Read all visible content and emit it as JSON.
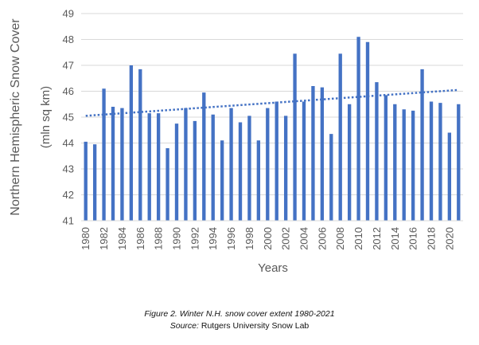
{
  "chart_data": {
    "type": "bar",
    "title": "",
    "xlabel": "Years",
    "ylabel": "Northern Hemispheric Snow Cover",
    "ylabel_units": "(mln sq km)",
    "ylim": [
      41,
      49
    ],
    "yticks": [
      "41",
      "42",
      "43",
      "44",
      "45",
      "46",
      "47",
      "48",
      "49"
    ],
    "grid": true,
    "legend": "none",
    "x_tick_labels": [
      "1980",
      "1982",
      "1984",
      "1986",
      "1988",
      "1990",
      "1992",
      "1994",
      "1996",
      "1998",
      "2000",
      "2002",
      "2004",
      "2006",
      "2008",
      "2010",
      "2012",
      "2014",
      "2016",
      "2018",
      "2020"
    ],
    "categories": [
      1980,
      1981,
      1982,
      1983,
      1984,
      1985,
      1986,
      1987,
      1988,
      1989,
      1990,
      1991,
      1992,
      1993,
      1994,
      1995,
      1996,
      1997,
      1998,
      1999,
      2000,
      2001,
      2002,
      2003,
      2004,
      2005,
      2006,
      2007,
      2008,
      2009,
      2010,
      2011,
      2012,
      2013,
      2014,
      2015,
      2016,
      2017,
      2018,
      2019,
      2020,
      2021
    ],
    "values": [
      44.05,
      43.95,
      46.1,
      45.4,
      45.35,
      47.0,
      46.85,
      45.15,
      45.15,
      43.8,
      44.75,
      45.35,
      44.85,
      45.95,
      45.1,
      44.1,
      45.35,
      44.8,
      45.05,
      44.1,
      45.35,
      45.6,
      45.05,
      47.45,
      45.6,
      46.2,
      46.15,
      44.35,
      47.45,
      45.5,
      48.1,
      47.9,
      46.35,
      45.85,
      45.5,
      45.3,
      45.25,
      46.85,
      45.6,
      45.55,
      44.4,
      45.5
    ],
    "trendline": {
      "type": "linear",
      "style": "dotted",
      "start": [
        1980,
        45.05
      ],
      "end": [
        2021,
        46.05
      ]
    },
    "colors": {
      "bar": "#4472C4",
      "trend": "#4472C4",
      "grid": "#D9D9D9",
      "text": "#595959"
    }
  },
  "caption": {
    "line1": "Figure 2. Winter N.H.  snow cover extent 1980-2021",
    "line2_label": "Source:",
    "line2_text": " Rutgers University Snow Lab"
  }
}
